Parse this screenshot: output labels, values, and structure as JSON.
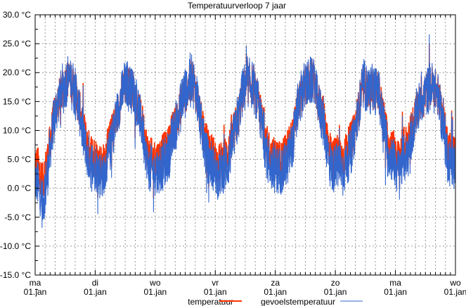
{
  "chart_data": {
    "type": "line",
    "title": "Temperatuurverloop 7 jaar",
    "xlabel": "",
    "ylabel": "",
    "ylim": [
      -15,
      30
    ],
    "grid": true,
    "legend_position": "bottom-center",
    "y_ticks": [
      "30.0 °C",
      "25.0 °C",
      "20.0 °C",
      "15.0 °C",
      "10.0 °C",
      "5.0 °C",
      "0.0 °C",
      "-5.0 °C",
      "-10.0 °C",
      "-15.0 °C"
    ],
    "y_tick_values": [
      30,
      25,
      20,
      15,
      10,
      5,
      0,
      -5,
      -10,
      -15
    ],
    "x_ticks": [
      {
        "day": "ma",
        "date": "01.jan"
      },
      {
        "day": "di",
        "date": "01.jan"
      },
      {
        "day": "wo",
        "date": "01.jan"
      },
      {
        "day": "vr",
        "date": "01.jan"
      },
      {
        "day": "za",
        "date": "01.jan"
      },
      {
        "day": "zo",
        "date": "01.jan"
      },
      {
        "day": "ma",
        "date": "01.jan"
      },
      {
        "day": "wo",
        "date": "01.jan"
      }
    ],
    "x_unit": "month index (0 = first jan, 84 = end)",
    "series": [
      {
        "name": "temperatuur",
        "color": "#ff3300",
        "monthly_values": [
          4,
          1,
          5,
          11,
          15,
          17,
          19,
          18,
          15,
          11,
          7,
          6,
          5,
          4,
          7,
          10,
          13,
          17,
          18,
          17,
          14,
          11,
          6,
          5,
          5,
          6,
          7,
          10,
          12,
          16,
          17,
          19,
          15,
          10,
          7,
          6,
          4,
          5,
          6,
          9,
          12,
          17,
          18,
          18,
          15,
          11,
          7,
          5,
          5,
          5,
          7,
          9,
          14,
          17,
          18,
          19,
          15,
          13,
          8,
          5,
          6,
          5,
          7,
          9,
          13,
          18,
          17,
          17,
          17,
          13,
          8,
          7,
          5,
          7,
          8,
          11,
          14,
          16,
          17,
          18,
          16,
          12,
          7,
          6
        ]
      },
      {
        "name": "gevoelstemperatuur",
        "color": "#3366cc",
        "monthly_values": [
          1,
          -3,
          3,
          10,
          15,
          17,
          19,
          18,
          15,
          10,
          5,
          4,
          3,
          2,
          5,
          9,
          13,
          17,
          18,
          17,
          14,
          10,
          4,
          3,
          3,
          4,
          5,
          9,
          12,
          16,
          17,
          19,
          15,
          9,
          5,
          4,
          2,
          3,
          4,
          8,
          12,
          17,
          18,
          18,
          15,
          10,
          5,
          3,
          3,
          3,
          5,
          8,
          14,
          17,
          18,
          19,
          15,
          12,
          6,
          3,
          4,
          3,
          5,
          8,
          13,
          18,
          17,
          17,
          17,
          12,
          6,
          5,
          3,
          5,
          6,
          10,
          14,
          16,
          17,
          18,
          16,
          11,
          5,
          4
        ]
      }
    ]
  }
}
